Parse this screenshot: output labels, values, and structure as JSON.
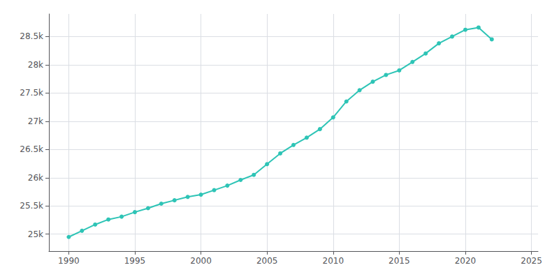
{
  "chart_data": {
    "type": "line",
    "x": [
      1990,
      1991,
      1992,
      1993,
      1994,
      1995,
      1996,
      1997,
      1998,
      1999,
      2000,
      2001,
      2002,
      2003,
      2004,
      2005,
      2006,
      2007,
      2008,
      2009,
      2010,
      2011,
      2012,
      2013,
      2014,
      2015,
      2016,
      2017,
      2018,
      2019,
      2020,
      2021,
      2022
    ],
    "values": [
      24950,
      25060,
      25170,
      25260,
      25310,
      25390,
      25460,
      25540,
      25600,
      25660,
      25700,
      25780,
      25860,
      25960,
      26050,
      26240,
      26430,
      26580,
      26710,
      26860,
      27068,
      27350,
      27550,
      27700,
      27820,
      27900,
      28050,
      28200,
      28380,
      28500,
      28620,
      28660,
      28450
    ],
    "color": "#2ec4b6",
    "marker": "circle",
    "xlim": [
      1988.5,
      2025.5
    ],
    "xticks": [
      1990,
      1995,
      2000,
      2005,
      2010,
      2015,
      2020,
      2025
    ],
    "ylim": [
      24700,
      28900
    ],
    "yticks": [
      {
        "value": 25000,
        "label": "25k"
      },
      {
        "value": 25500,
        "label": "25.5k"
      },
      {
        "value": 26000,
        "label": "26k"
      },
      {
        "value": 26500,
        "label": "26.5k"
      },
      {
        "value": 27000,
        "label": "27k"
      },
      {
        "value": 27500,
        "label": "27.5k"
      },
      {
        "value": 28000,
        "label": "28k"
      },
      {
        "value": 28500,
        "label": "28.5k"
      }
    ],
    "grid": true
  }
}
